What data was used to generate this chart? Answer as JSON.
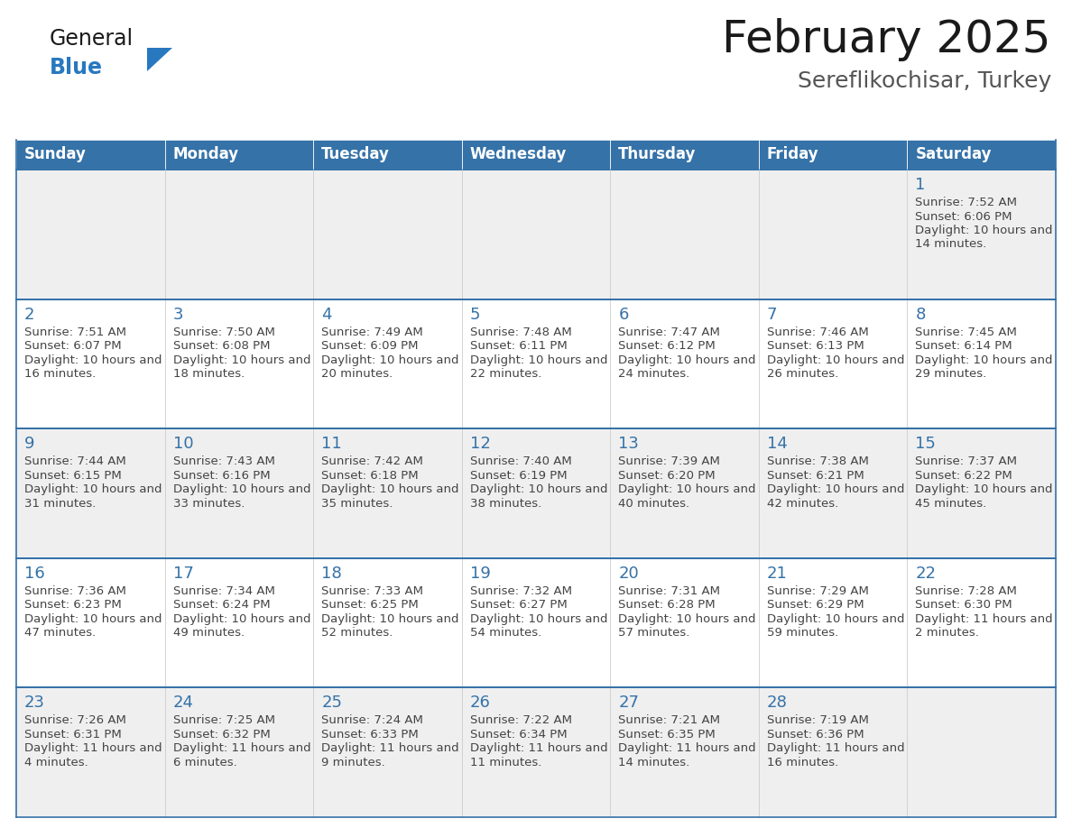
{
  "title": "February 2025",
  "subtitle": "Sereflikochisar, Turkey",
  "days_of_week": [
    "Sunday",
    "Monday",
    "Tuesday",
    "Wednesday",
    "Thursday",
    "Friday",
    "Saturday"
  ],
  "header_bg": "#3572a8",
  "header_text": "#ffffff",
  "cell_bg_light": "#efefef",
  "cell_bg_white": "#ffffff",
  "row_border_color": "#3572a8",
  "col_border_color": "#cccccc",
  "day_number_color": "#3572a8",
  "info_text_color": "#444444",
  "title_color": "#1a1a1a",
  "subtitle_color": "#555555",
  "logo_general_color": "#1a1a1a",
  "logo_blue_color": "#2878c0",
  "calendar_data": [
    [
      null,
      null,
      null,
      null,
      null,
      null,
      {
        "day": 1,
        "sunrise": "7:52 AM",
        "sunset": "6:06 PM",
        "daylight": "10 hours and 14 minutes."
      }
    ],
    [
      {
        "day": 2,
        "sunrise": "7:51 AM",
        "sunset": "6:07 PM",
        "daylight": "10 hours and 16 minutes."
      },
      {
        "day": 3,
        "sunrise": "7:50 AM",
        "sunset": "6:08 PM",
        "daylight": "10 hours and 18 minutes."
      },
      {
        "day": 4,
        "sunrise": "7:49 AM",
        "sunset": "6:09 PM",
        "daylight": "10 hours and 20 minutes."
      },
      {
        "day": 5,
        "sunrise": "7:48 AM",
        "sunset": "6:11 PM",
        "daylight": "10 hours and 22 minutes."
      },
      {
        "day": 6,
        "sunrise": "7:47 AM",
        "sunset": "6:12 PM",
        "daylight": "10 hours and 24 minutes."
      },
      {
        "day": 7,
        "sunrise": "7:46 AM",
        "sunset": "6:13 PM",
        "daylight": "10 hours and 26 minutes."
      },
      {
        "day": 8,
        "sunrise": "7:45 AM",
        "sunset": "6:14 PM",
        "daylight": "10 hours and 29 minutes."
      }
    ],
    [
      {
        "day": 9,
        "sunrise": "7:44 AM",
        "sunset": "6:15 PM",
        "daylight": "10 hours and 31 minutes."
      },
      {
        "day": 10,
        "sunrise": "7:43 AM",
        "sunset": "6:16 PM",
        "daylight": "10 hours and 33 minutes."
      },
      {
        "day": 11,
        "sunrise": "7:42 AM",
        "sunset": "6:18 PM",
        "daylight": "10 hours and 35 minutes."
      },
      {
        "day": 12,
        "sunrise": "7:40 AM",
        "sunset": "6:19 PM",
        "daylight": "10 hours and 38 minutes."
      },
      {
        "day": 13,
        "sunrise": "7:39 AM",
        "sunset": "6:20 PM",
        "daylight": "10 hours and 40 minutes."
      },
      {
        "day": 14,
        "sunrise": "7:38 AM",
        "sunset": "6:21 PM",
        "daylight": "10 hours and 42 minutes."
      },
      {
        "day": 15,
        "sunrise": "7:37 AM",
        "sunset": "6:22 PM",
        "daylight": "10 hours and 45 minutes."
      }
    ],
    [
      {
        "day": 16,
        "sunrise": "7:36 AM",
        "sunset": "6:23 PM",
        "daylight": "10 hours and 47 minutes."
      },
      {
        "day": 17,
        "sunrise": "7:34 AM",
        "sunset": "6:24 PM",
        "daylight": "10 hours and 49 minutes."
      },
      {
        "day": 18,
        "sunrise": "7:33 AM",
        "sunset": "6:25 PM",
        "daylight": "10 hours and 52 minutes."
      },
      {
        "day": 19,
        "sunrise": "7:32 AM",
        "sunset": "6:27 PM",
        "daylight": "10 hours and 54 minutes."
      },
      {
        "day": 20,
        "sunrise": "7:31 AM",
        "sunset": "6:28 PM",
        "daylight": "10 hours and 57 minutes."
      },
      {
        "day": 21,
        "sunrise": "7:29 AM",
        "sunset": "6:29 PM",
        "daylight": "10 hours and 59 minutes."
      },
      {
        "day": 22,
        "sunrise": "7:28 AM",
        "sunset": "6:30 PM",
        "daylight": "11 hours and 2 minutes."
      }
    ],
    [
      {
        "day": 23,
        "sunrise": "7:26 AM",
        "sunset": "6:31 PM",
        "daylight": "11 hours and 4 minutes."
      },
      {
        "day": 24,
        "sunrise": "7:25 AM",
        "sunset": "6:32 PM",
        "daylight": "11 hours and 6 minutes."
      },
      {
        "day": 25,
        "sunrise": "7:24 AM",
        "sunset": "6:33 PM",
        "daylight": "11 hours and 9 minutes."
      },
      {
        "day": 26,
        "sunrise": "7:22 AM",
        "sunset": "6:34 PM",
        "daylight": "11 hours and 11 minutes."
      },
      {
        "day": 27,
        "sunrise": "7:21 AM",
        "sunset": "6:35 PM",
        "daylight": "11 hours and 14 minutes."
      },
      {
        "day": 28,
        "sunrise": "7:19 AM",
        "sunset": "6:36 PM",
        "daylight": "11 hours and 16 minutes."
      },
      null
    ]
  ]
}
